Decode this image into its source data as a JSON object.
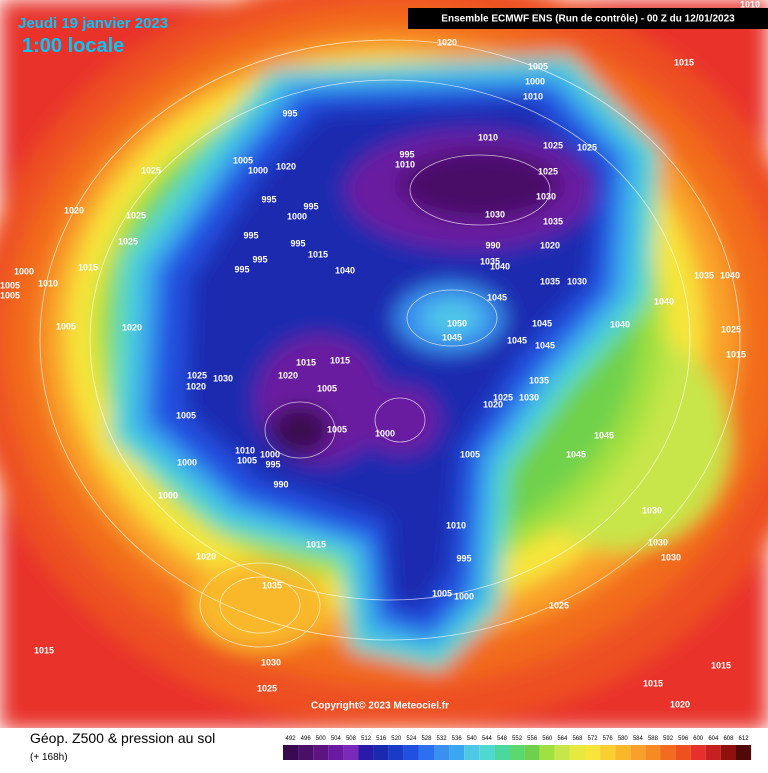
{
  "header": {
    "date": "Jeudi 19 janvier 2023",
    "time": "1:00 locale",
    "model": "Ensemble ECMWF ENS  (Run de contrôle)  -  00 Z du 12/01/2023",
    "corner_label": "1010"
  },
  "map": {
    "pressure_labels": [
      1020,
      1005,
      1000,
      1010,
      1015,
      995,
      1010,
      1025,
      1025,
      995,
      1010,
      1005,
      1000,
      1020,
      1025,
      1025,
      1030,
      1035,
      1020,
      1030,
      990,
      995,
      995,
      1000,
      995,
      995,
      995,
      995,
      1015,
      1040,
      1035,
      1040,
      1035,
      1030,
      1035,
      1040,
      1045,
      1050,
      1045,
      1045,
      1045,
      1045,
      1040,
      1040,
      1020,
      1025,
      1025,
      1015,
      1010,
      1005,
      1020,
      1015,
      1015,
      1020,
      1005,
      1030,
      1025,
      1020,
      1005,
      1035,
      1030,
      1025,
      1020,
      1005,
      1000,
      1010,
      1005,
      1000,
      995,
      1005,
      990,
      1000,
      1000,
      1045,
      1045,
      1015,
      1010,
      1020,
      995,
      1030,
      1030,
      1030,
      1035,
      1005,
      1000,
      1025,
      1015,
      1030,
      1025,
      1015,
      1020,
      1015,
      1015,
      1025,
      1005,
      1005,
      1000
    ],
    "copyright": "Copyright© 2023 Meteociel.fr"
  },
  "legend": {
    "title": "Géop. Z500 & pression au sol",
    "subtitle": "(+ 168h)",
    "colorbar": {
      "values": [
        492,
        496,
        500,
        504,
        508,
        512,
        516,
        520,
        524,
        528,
        532,
        536,
        540,
        544,
        548,
        552,
        556,
        560,
        564,
        568,
        572,
        576,
        580,
        584,
        588,
        592,
        596,
        600,
        604,
        608,
        612
      ],
      "colors": [
        "#3a0a50",
        "#4a0f68",
        "#5c1480",
        "#6a1aa0",
        "#7a2ab8",
        "#2a1aa8",
        "#1a2ab0",
        "#1a3ac8",
        "#2050e0",
        "#2a70f0",
        "#3a90f0",
        "#3aa8f0",
        "#4fc8e8",
        "#4fd8d0",
        "#4ad8a0",
        "#5cd870",
        "#6fd14b",
        "#a0e040",
        "#c8e64a",
        "#e6ea40",
        "#f7e53a",
        "#f9d030",
        "#f9b82a",
        "#f9a02a",
        "#f78a24",
        "#f26b1f",
        "#ee5020",
        "#e8302a",
        "#c82020",
        "#901010",
        "#500808"
      ]
    }
  }
}
